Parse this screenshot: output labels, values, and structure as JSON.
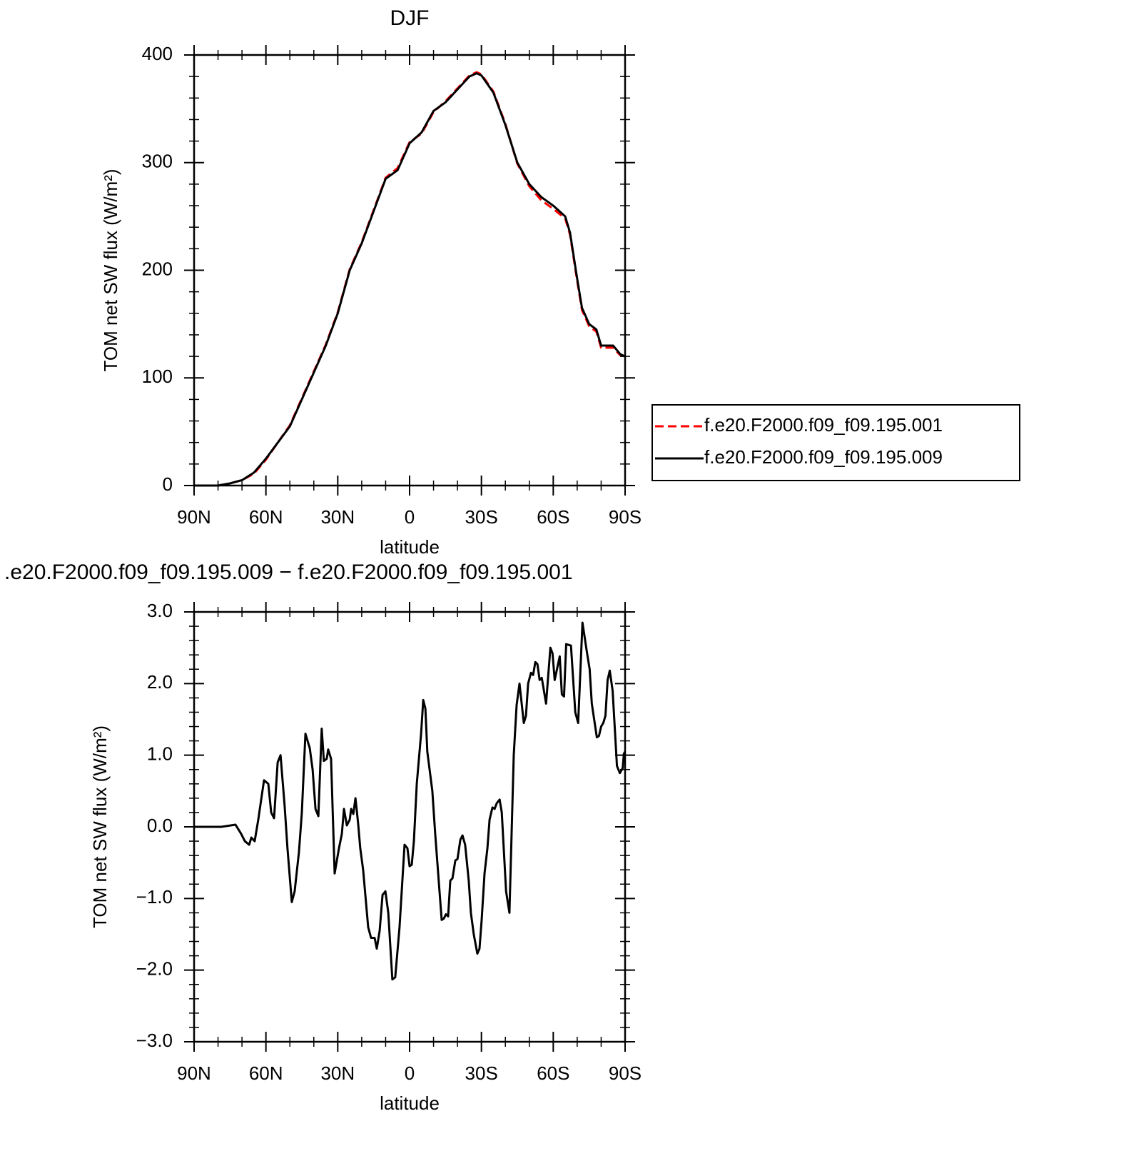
{
  "chart_data": [
    {
      "type": "line",
      "title": "DJF",
      "xlabel": "latitude",
      "ylabel": "TOM net SW flux (W/m²)",
      "x": [
        90,
        80,
        75,
        70,
        65,
        60,
        55,
        50,
        45,
        40,
        35,
        30,
        25,
        20,
        15,
        10,
        5,
        0,
        -5,
        -10,
        -15,
        -20,
        -25,
        -28,
        -30,
        -35,
        -40,
        -45,
        -50,
        -55,
        -60,
        -65,
        -67,
        -70,
        -72,
        -75,
        -78,
        -80,
        -85,
        -88,
        -90
      ],
      "series": [
        {
          "name": "f.e20.F2000.f09_f09.195.001",
          "color": "#ff0000",
          "dash": true,
          "values": [
            0,
            0,
            2,
            5,
            11,
            24,
            40,
            56,
            81,
            106,
            131,
            161,
            201,
            226,
            256,
            286,
            295,
            319,
            327,
            347,
            357,
            369,
            381,
            384,
            382,
            366,
            336,
            299,
            278,
            265,
            257,
            248,
            233,
            190,
            163,
            148,
            143,
            128,
            128,
            121,
            120
          ]
        },
        {
          "name": "f.e20.F2000.f09_f09.195.009",
          "color": "#000000",
          "dash": false,
          "values": [
            0,
            0,
            2,
            5,
            12,
            25,
            40,
            55,
            80,
            105,
            130,
            160,
            200,
            225,
            255,
            285,
            293,
            318,
            328,
            348,
            356,
            368,
            380,
            383,
            381,
            365,
            335,
            300,
            280,
            268,
            260,
            250,
            235,
            192,
            165,
            150,
            145,
            130,
            130,
            122,
            120
          ]
        }
      ],
      "xlim": [
        90,
        -90
      ],
      "xticks": [
        {
          "value": 90,
          "label": "90N"
        },
        {
          "value": 60,
          "label": "60N"
        },
        {
          "value": 30,
          "label": "30N"
        },
        0,
        {
          "value": -30,
          "label": "30S"
        },
        {
          "value": -60,
          "label": "60S"
        },
        {
          "value": -90,
          "label": "90S"
        }
      ],
      "ylim": [
        0,
        400
      ],
      "yticks": [
        0,
        100,
        200,
        300,
        400
      ],
      "legend": "right"
    },
    {
      "type": "line",
      "title": ".e20.F2000.f09_f09.195.009 − f.e20.F2000.f09_f09.195.001",
      "xlabel": "latitude",
      "ylabel": "TOM net SW flux (W/m²)",
      "x": [
        90,
        78.7,
        72.7,
        70.3,
        68.8,
        67,
        66.1,
        64.7,
        63.2,
        60.8,
        59,
        57.8,
        56.6,
        55.1,
        53.9,
        52.2,
        51,
        49.2,
        48,
        46.2,
        45,
        43.5,
        41.7,
        40.5,
        39.3,
        38.1,
        36.7,
        35.8,
        34.6,
        34,
        32.8,
        31.3,
        29.5,
        28.3,
        27.4,
        26.2,
        25,
        24.4,
        23.5,
        22.6,
        21.5,
        20.6,
        19.4,
        17.3,
        16.1,
        14.6,
        13.7,
        12.5,
        11.3,
        10.1,
        8.9,
        7.2,
        6,
        4.2,
        2.1,
        0.9,
        0,
        -0.9,
        -1.8,
        -3,
        -4.8,
        -5.7,
        -6.6,
        -7.4,
        -9.5,
        -10.7,
        -12.5,
        -13.4,
        -14.3,
        -15.2,
        -16.1,
        -17,
        -17.9,
        -19.1,
        -20,
        -21.2,
        -22.1,
        -23.2,
        -24.7,
        -25.6,
        -26.8,
        -28.3,
        -29.2,
        -30.1,
        -31.3,
        -32.5,
        -33.4,
        -34.6,
        -35.5,
        -36.4,
        -37.6,
        -38.5,
        -40.3,
        -41.7,
        -43.5,
        -44.7,
        -45.9,
        -47.7,
        -48.6,
        -49.5,
        -50.7,
        -51.6,
        -52.5,
        -53.4,
        -54.3,
        -55.2,
        -57,
        -58.8,
        -59.7,
        -60.6,
        -62.7,
        -63.6,
        -64.5,
        -65.4,
        -67.4,
        -69.2,
        -70.4,
        -72.2,
        -74,
        -75.2,
        -76.1,
        -78.2,
        -79.1,
        -80,
        -80.9,
        -81.8,
        -82.7,
        -83.6,
        -84.8,
        -86.6,
        -87.8,
        -89,
        -89.5,
        -90
      ],
      "series": [
        {
          "color": "#000000",
          "dash": false,
          "values": [
            0,
            0,
            0.03,
            -0.1,
            -0.2,
            -0.25,
            -0.15,
            -0.2,
            0.1,
            0.65,
            0.6,
            0.2,
            0.12,
            0.9,
            1.0,
            0.3,
            -0.3,
            -1.05,
            -0.9,
            -0.35,
            0.2,
            1.3,
            1.1,
            0.8,
            0.25,
            0.15,
            1.37,
            0.92,
            0.95,
            1.08,
            0.95,
            -0.65,
            -0.3,
            -0.1,
            0.25,
            0.02,
            0.1,
            0.25,
            0.18,
            0.4,
            0.05,
            -0.3,
            -0.6,
            -1.4,
            -1.55,
            -1.55,
            -1.7,
            -1.45,
            -0.95,
            -0.9,
            -1.2,
            -2.13,
            -2.1,
            -1.4,
            -0.25,
            -0.3,
            -0.55,
            -0.53,
            -0.2,
            0.6,
            1.3,
            1.77,
            1.65,
            1.05,
            0.5,
            -0.1,
            -0.9,
            -1.3,
            -1.28,
            -1.22,
            -1.25,
            -0.75,
            -0.72,
            -0.47,
            -0.45,
            -0.18,
            -0.12,
            -0.25,
            -0.75,
            -1.2,
            -1.5,
            -1.77,
            -1.7,
            -1.3,
            -0.65,
            -0.3,
            0.1,
            0.27,
            0.25,
            0.33,
            0.38,
            0.2,
            -0.9,
            -1.2,
            1.0,
            1.7,
            2.0,
            1.45,
            1.55,
            2.0,
            2.15,
            2.12,
            2.3,
            2.27,
            2.05,
            2.08,
            1.72,
            2.5,
            2.42,
            2.05,
            2.38,
            1.85,
            1.82,
            2.55,
            2.53,
            1.6,
            1.45,
            2.85,
            2.45,
            2.2,
            1.72,
            1.25,
            1.27,
            1.4,
            1.45,
            1.55,
            2.05,
            2.18,
            1.9,
            0.85,
            0.75,
            0.82,
            1.02,
            1.05
          ]
        }
      ],
      "xlim": [
        90,
        -90
      ],
      "xticks": [
        {
          "value": 90,
          "label": "90N"
        },
        {
          "value": 60,
          "label": "60N"
        },
        {
          "value": 30,
          "label": "30N"
        },
        0,
        {
          "value": -30,
          "label": "30S"
        },
        {
          "value": -60,
          "label": "60S"
        },
        {
          "value": -90,
          "label": "90S"
        }
      ],
      "ylim": [
        -3,
        3
      ],
      "yticks": [
        {
          "value": -3,
          "label": "−3.0"
        },
        {
          "value": -2,
          "label": "−2.0"
        },
        {
          "value": -1,
          "label": "−1.0"
        },
        {
          "value": 0,
          "label": "0.0"
        },
        {
          "value": 1,
          "label": "1.0"
        },
        {
          "value": 2,
          "label": "2.0"
        },
        {
          "value": 3,
          "label": "3.0"
        }
      ]
    }
  ]
}
